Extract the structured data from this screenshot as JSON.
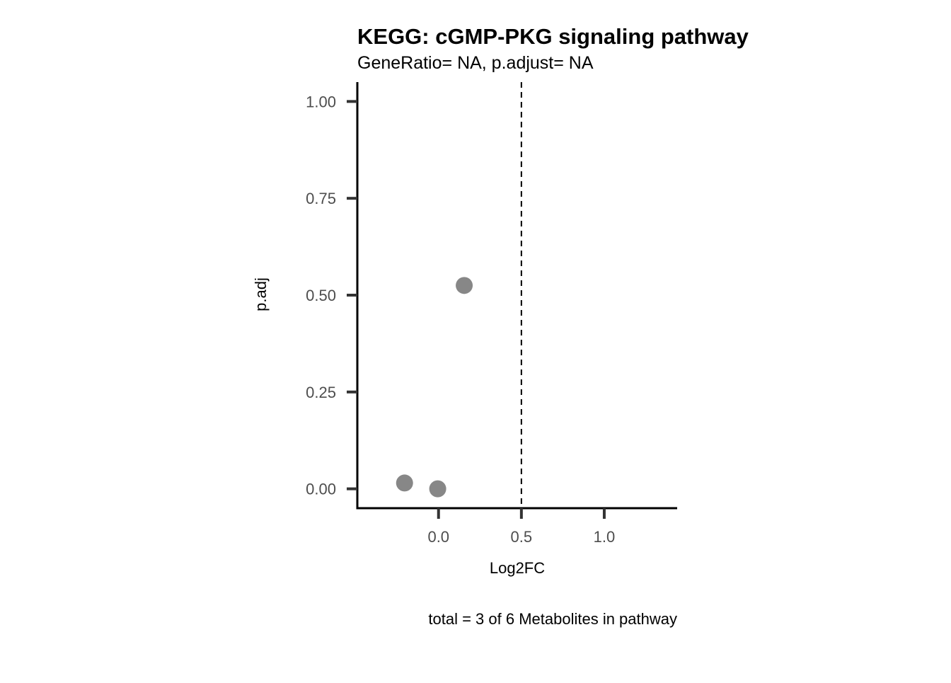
{
  "chart_data": {
    "type": "scatter",
    "title": "KEGG: cGMP-PKG signaling pathway",
    "subtitle": "GeneRatio= NA, p.adjust= NA",
    "xlabel": "Log2FC",
    "ylabel": "p.adj",
    "caption": "total = 3 of 6 Metabolites in pathway",
    "xlim": [
      -0.49,
      1.44
    ],
    "ylim": [
      -0.05,
      1.05
    ],
    "x_ticks": [
      0.0,
      0.5,
      1.0
    ],
    "x_tick_labels": [
      "0.0",
      "0.5",
      "1.0"
    ],
    "y_ticks": [
      0.0,
      0.25,
      0.5,
      0.75,
      1.0
    ],
    "y_tick_labels": [
      "0.00",
      "0.25",
      "0.50",
      "0.75",
      "1.00"
    ],
    "reference_line": {
      "axis": "x",
      "value": 0.5,
      "style": "dashed"
    },
    "grid": false,
    "point_color": "#878787",
    "points": [
      {
        "x": 0.155,
        "y": 0.525
      },
      {
        "x": -0.205,
        "y": 0.015
      },
      {
        "x": -0.005,
        "y": 0.0
      }
    ]
  }
}
